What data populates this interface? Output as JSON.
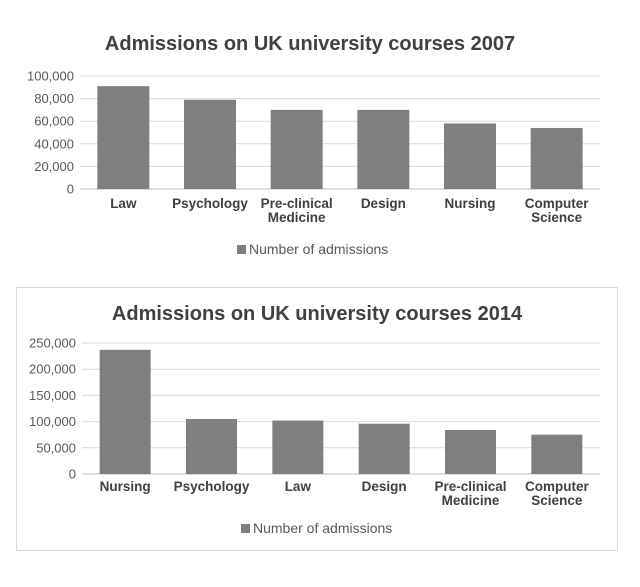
{
  "chart_data": [
    {
      "type": "bar",
      "title": "Admissions on UK university courses 2007",
      "categories": [
        [
          "Law"
        ],
        [
          "Psychology"
        ],
        [
          "Pre-clinical",
          "Medicine"
        ],
        [
          "Design"
        ],
        [
          "Nursing"
        ],
        [
          "Computer",
          "Science"
        ]
      ],
      "series": [
        {
          "name": "Number of admissions",
          "values": [
            91000,
            79000,
            70000,
            70000,
            58000,
            54000
          ]
        }
      ],
      "ylim": [
        0,
        100000
      ],
      "yticks": [
        "100,000",
        "80,000",
        "60,000",
        "40,000",
        "20,000",
        "0"
      ],
      "grid": true,
      "legend_position": "bottom",
      "bar_color": "#7f7f7f"
    },
    {
      "type": "bar",
      "title": "Admissions on UK university courses 2014",
      "categories": [
        [
          "Nursing"
        ],
        [
          "Psychology"
        ],
        [
          "Law"
        ],
        [
          "Design"
        ],
        [
          "Pre-clinical",
          "Medicine"
        ],
        [
          "Computer",
          "Science"
        ]
      ],
      "series": [
        {
          "name": "Number of admissions",
          "values": [
            237000,
            105000,
            102000,
            96000,
            84000,
            75000
          ]
        }
      ],
      "ylim": [
        0,
        250000
      ],
      "yticks": [
        "250,000",
        "200,000",
        "150,000",
        "100,000",
        "50,000",
        "0"
      ],
      "grid": true,
      "legend_position": "bottom",
      "bar_color": "#7f7f7f"
    }
  ]
}
